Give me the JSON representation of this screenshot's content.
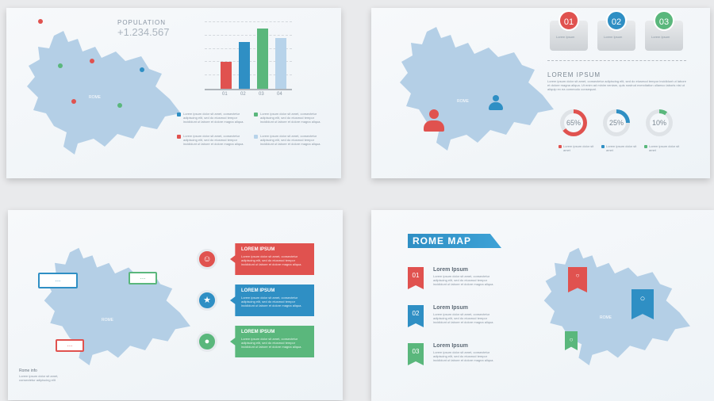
{
  "colors": {
    "red": "#e0524f",
    "blue": "#2f8fc4",
    "green": "#5ab77c",
    "lightblue": "#b7d3ea",
    "map": "#b4cfe6"
  },
  "slide1": {
    "title": "POPULATION",
    "value": "+1.234.567",
    "map_label": "ROME",
    "legend": [
      {
        "color": "#2f8fc4",
        "text": "Lorem ipsum dolor sit amet, consectetur adipiscing elit, sed do eiusmod tempor incididunt ut labore et dolore magna aliqua."
      },
      {
        "color": "#5ab77c",
        "text": "Lorem ipsum dolor sit amet, consectetur adipiscing elit, sed do eiusmod tempor incididunt ut labore et dolore magna aliqua."
      },
      {
        "color": "#e0524f",
        "text": "Lorem ipsum dolor sit amet, consectetur adipiscing elit, sed do eiusmod tempor incididunt ut labore et dolore magna aliqua."
      },
      {
        "color": "#b7d3ea",
        "text": "Lorem ipsum dolor sit amet, consectetur adipiscing elit, sed do eiusmod tempor incididunt ut labore et dolore magna aliqua."
      }
    ]
  },
  "chart_data": {
    "type": "bar",
    "categories": [
      "01",
      "02",
      "03",
      "04"
    ],
    "values": [
      2,
      3.5,
      4.5,
      3.8
    ],
    "colors": [
      "#e0524f",
      "#2f8fc4",
      "#5ab77c",
      "#b7d3ea"
    ],
    "ylim": [
      0,
      5
    ],
    "grid": true
  },
  "slide2": {
    "cards": [
      {
        "num": "01",
        "label": "Lorem Ipsum",
        "color": "#e0524f"
      },
      {
        "num": "02",
        "label": "Lorem Ipsum",
        "color": "#2f8fc4"
      },
      {
        "num": "03",
        "label": "Lorem Ipsum",
        "color": "#5ab77c"
      }
    ],
    "heading": "LOREM IPSUM",
    "body": "Lorem ipsum dolor sit amet, consectetur adipiscing elit, sed do eiusmod tempor incididunt ut labore et dolore magna aliqua. Ut enim ad minim veniam, quis nostrud exercitation ullamco laboris nisi ut aliquip ex ea commodo consequat.",
    "map_label": "ROME",
    "donuts": [
      {
        "pct": 65,
        "label": "65%",
        "color": "#e0524f"
      },
      {
        "pct": 25,
        "label": "25%",
        "color": "#2f8fc4"
      },
      {
        "pct": 10,
        "label": "10%",
        "color": "#5ab77c"
      }
    ],
    "donut_caption": "Lorem ipsum dolor sit amet"
  },
  "slide3": {
    "map_label": "ROME",
    "bubble_text": "...",
    "boxes": [
      {
        "title": "LOREM IPSUM",
        "color": "#e0524f",
        "icon": "user-icon"
      },
      {
        "title": "LOREM IPSUM",
        "color": "#2f8fc4",
        "icon": "star-icon"
      },
      {
        "title": "LOREM IPSUM",
        "color": "#5ab77c",
        "icon": "location-pin-icon"
      }
    ],
    "box_text": "Lorem ipsum dolor sit amet, consectetur adipiscing elit, sed do eiusmod tempor incididunt ut labore et dolore magna aliqua.",
    "footer_title": "Rome info",
    "footer_text": "Lorem ipsum dolor sit amet, consectetur adipiscing elit"
  },
  "slide4": {
    "title": "ROME MAP",
    "map_label": "ROME",
    "items": [
      {
        "num": "01",
        "title": "Lorem Ipsum",
        "color": "#e0524f"
      },
      {
        "num": "02",
        "title": "Lorem Ipsum",
        "color": "#2f8fc4"
      },
      {
        "num": "03",
        "title": "Lorem Ipsum",
        "color": "#5ab77c"
      }
    ],
    "item_text": "Lorem ipsum dolor sit amet, consectetur adipiscing elit, sed do eiusmod tempor incididunt ut labore et dolore magna aliqua."
  }
}
